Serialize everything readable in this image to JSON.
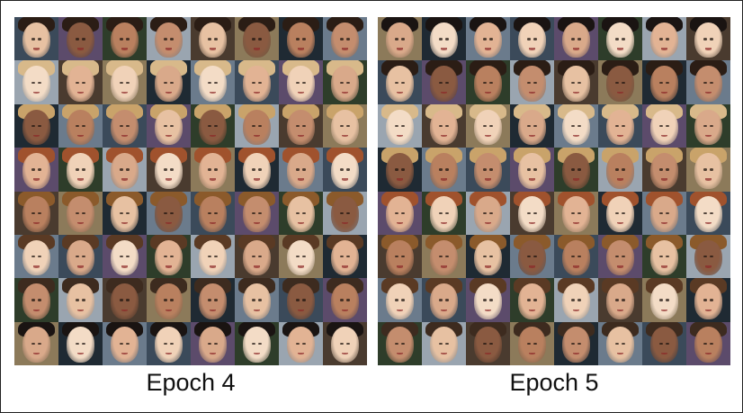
{
  "panels": [
    {
      "label": "Epoch 4",
      "rows": 8,
      "cols": 8
    },
    {
      "label": "Epoch 5",
      "rows": 8,
      "cols": 8
    }
  ],
  "palette": {
    "skin": [
      "#e7c1a2",
      "#d9a98a",
      "#c48d6e",
      "#f0d2b8",
      "#b9805f",
      "#e2b394",
      "#8a5a41",
      "#f3dcc6"
    ],
    "hair": [
      "#2b1d15",
      "#5a3a24",
      "#c9a36a",
      "#1a1412",
      "#8b5a2b",
      "#d8b98a",
      "#3d2b1f",
      "#a0522d"
    ],
    "bg": [
      "#3b4a5a",
      "#6b7b8c",
      "#1f2a33",
      "#8c7a5a",
      "#4a3b2f",
      "#9aa5b0",
      "#2e3d2a",
      "#5c4b6b"
    ]
  }
}
